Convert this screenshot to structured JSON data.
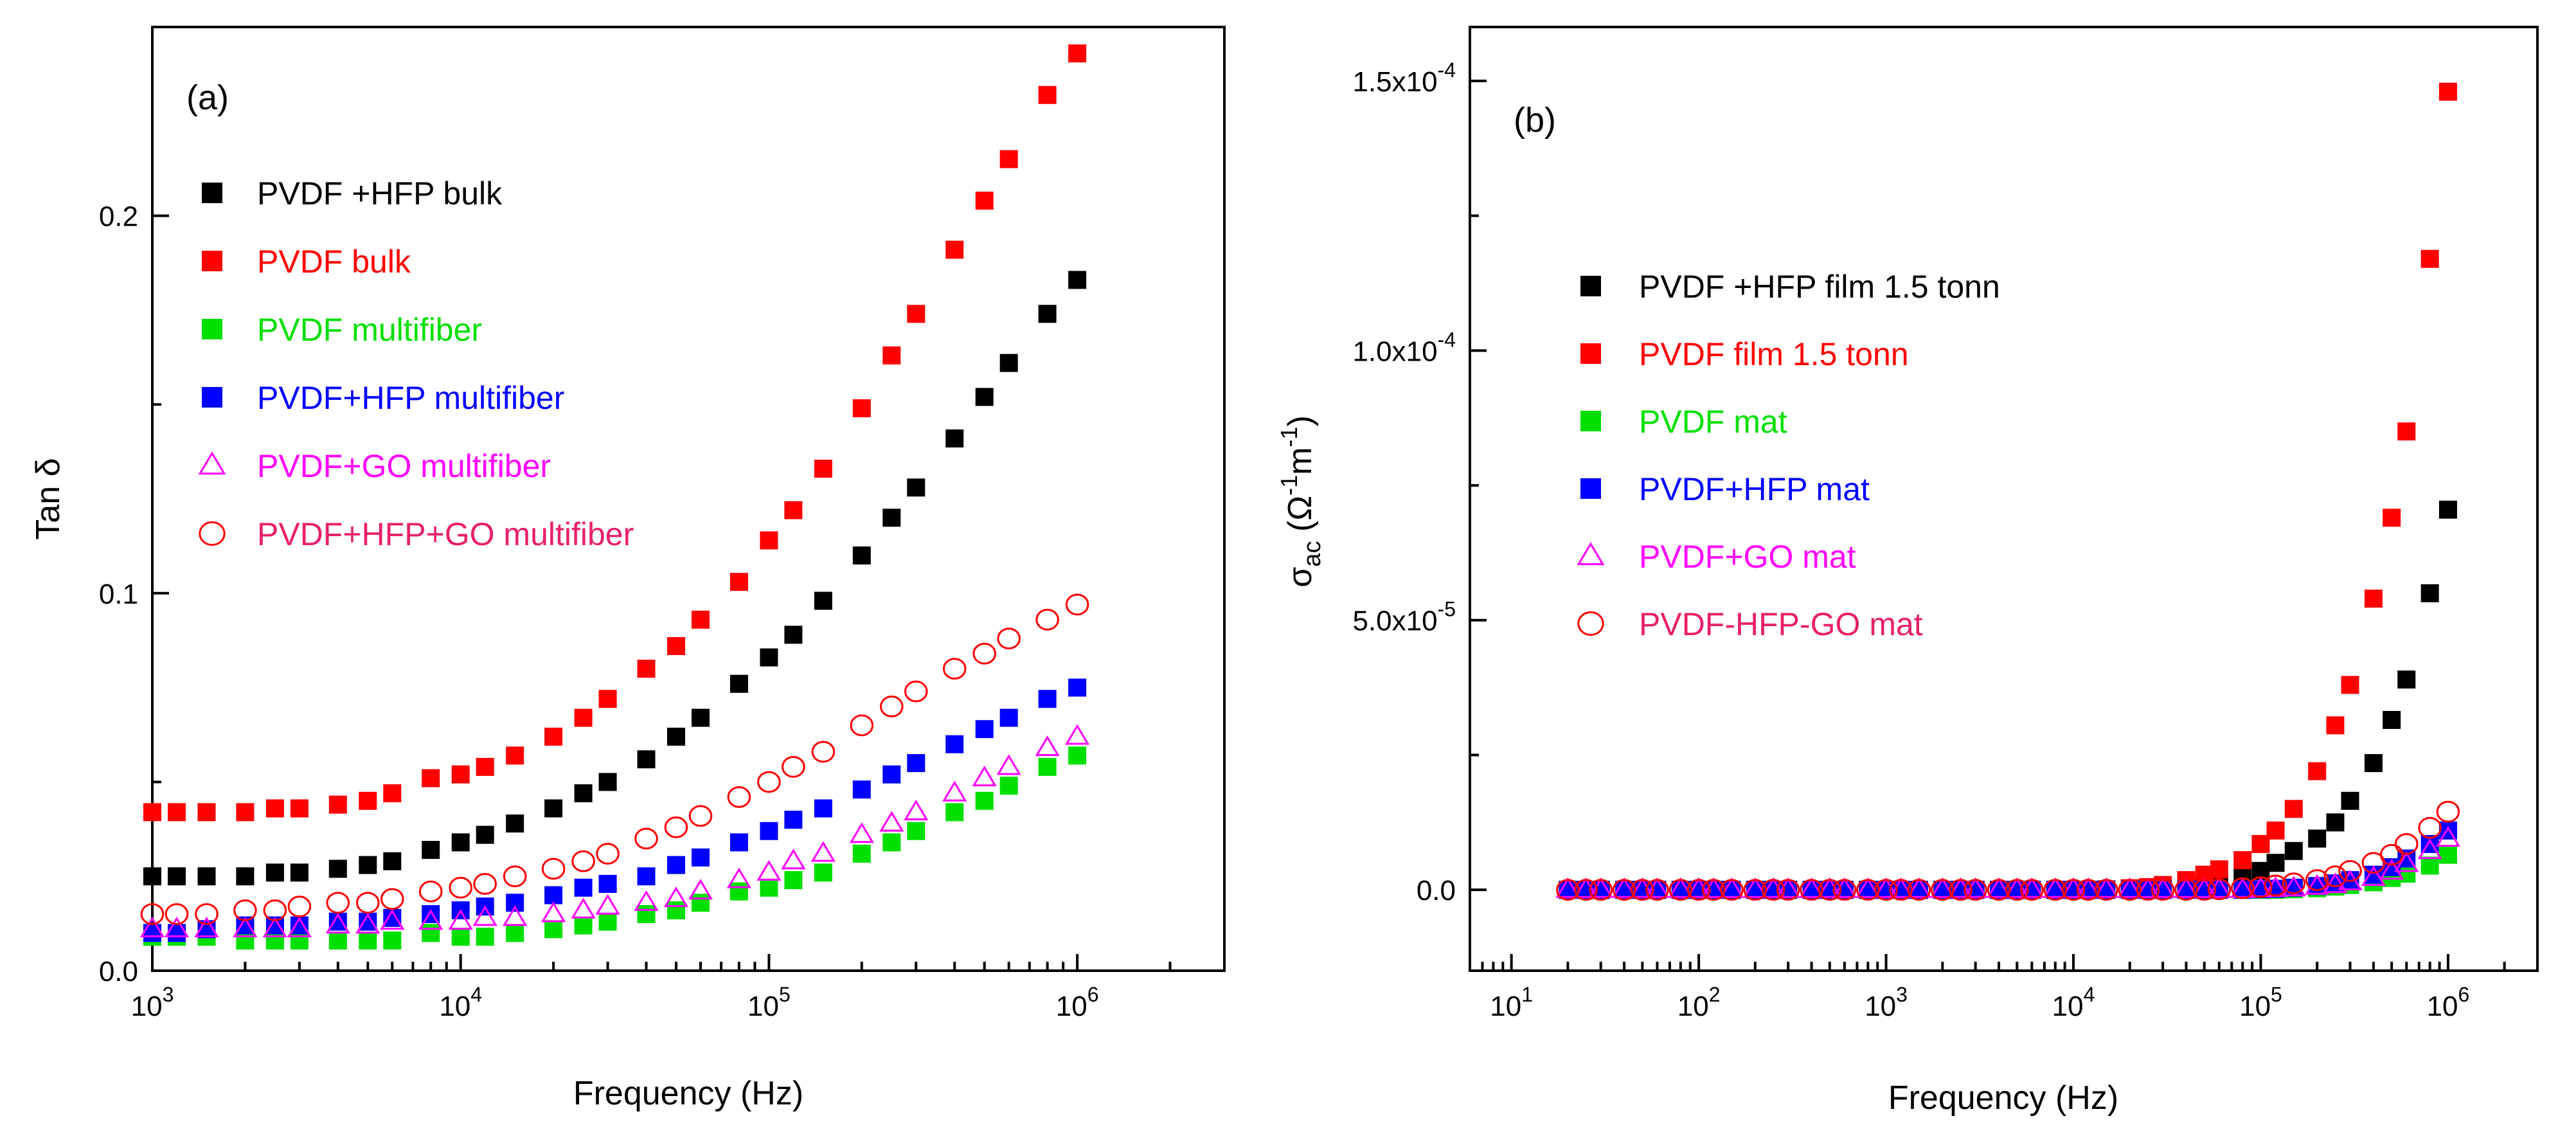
{
  "chart_data": [
    {
      "panel": "(a)",
      "type": "scatter",
      "xlabel": "Frequency (Hz)",
      "ylabel": "Tan δ",
      "xscale": "log",
      "xlim": [
        1000,
        3000000
      ],
      "ylim": [
        0,
        0.25
      ],
      "xticks": [
        1000,
        10000,
        100000,
        1000000
      ],
      "xtick_labels": [
        {
          "base": "10",
          "exp": "3"
        },
        {
          "base": "10",
          "exp": "4"
        },
        {
          "base": "10",
          "exp": "5"
        },
        {
          "base": "10",
          "exp": "6"
        }
      ],
      "yticks": [
        0,
        0.1,
        0.2
      ],
      "ytick_labels": [
        "0.0",
        "0.1",
        "0.2"
      ],
      "legend_position": "top-left",
      "x": [
        1000,
        1200,
        1500,
        2000,
        2500,
        3000,
        4000,
        5000,
        6000,
        8000,
        10000,
        12000,
        15000,
        20000,
        25000,
        30000,
        40000,
        50000,
        60000,
        80000,
        100000,
        120000,
        150000,
        200000,
        250000,
        300000,
        400000,
        500000,
        600000,
        800000,
        1000000
      ],
      "series": [
        {
          "name": "PVDF +HFP bulk",
          "color": "#000000",
          "marker": "square",
          "values": [
            0.025,
            0.025,
            0.025,
            0.025,
            0.026,
            0.026,
            0.027,
            0.028,
            0.029,
            0.032,
            0.034,
            0.036,
            0.039,
            0.043,
            0.047,
            0.05,
            0.056,
            0.062,
            0.067,
            0.076,
            0.083,
            0.089,
            0.098,
            0.11,
            0.12,
            0.128,
            0.141,
            0.152,
            0.161,
            0.174,
            0.183
          ]
        },
        {
          "name": "PVDF bulk",
          "color": "#ff0000",
          "marker": "square",
          "values": [
            0.042,
            0.042,
            0.042,
            0.042,
            0.043,
            0.043,
            0.044,
            0.045,
            0.047,
            0.051,
            0.052,
            0.054,
            0.057,
            0.062,
            0.067,
            0.072,
            0.08,
            0.086,
            0.093,
            0.103,
            0.114,
            0.122,
            0.133,
            0.149,
            0.163,
            0.174,
            0.191,
            0.204,
            0.215,
            0.232,
            0.243
          ]
        },
        {
          "name": "PVDF multifiber",
          "color": "#00e000",
          "marker": "square",
          "values": [
            0.009,
            0.009,
            0.009,
            0.008,
            0.008,
            0.008,
            0.008,
            0.008,
            0.008,
            0.01,
            0.009,
            0.009,
            0.01,
            0.011,
            0.012,
            0.013,
            0.015,
            0.016,
            0.018,
            0.021,
            0.022,
            0.024,
            0.026,
            0.031,
            0.034,
            0.037,
            0.042,
            0.045,
            0.049,
            0.054,
            0.057
          ]
        },
        {
          "name": "PVDF+HFP multifiber",
          "color": "#0000ff",
          "marker": "square",
          "values": [
            0.01,
            0.01,
            0.011,
            0.012,
            0.012,
            0.012,
            0.013,
            0.013,
            0.014,
            0.015,
            0.016,
            0.017,
            0.018,
            0.02,
            0.022,
            0.023,
            0.025,
            0.028,
            0.03,
            0.034,
            0.037,
            0.04,
            0.043,
            0.048,
            0.052,
            0.055,
            0.06,
            0.064,
            0.067,
            0.072,
            0.075
          ]
        },
        {
          "name": "PVDF+GO multifiber",
          "color": "#ff00ff",
          "marker": "triangle-open",
          "values": [
            0.011,
            0.011,
            0.011,
            0.011,
            0.011,
            0.011,
            0.012,
            0.012,
            0.013,
            0.013,
            0.013,
            0.014,
            0.014,
            0.015,
            0.016,
            0.017,
            0.018,
            0.019,
            0.021,
            0.024,
            0.026,
            0.029,
            0.031,
            0.036,
            0.039,
            0.042,
            0.047,
            0.051,
            0.054,
            0.059,
            0.062
          ]
        },
        {
          "name": "PVDF+HFP+GO multifiber",
          "color": "#ff0000",
          "marker": "circle-open",
          "values": [
            0.015,
            0.015,
            0.015,
            0.016,
            0.016,
            0.017,
            0.018,
            0.018,
            0.019,
            0.021,
            0.022,
            0.023,
            0.025,
            0.027,
            0.029,
            0.031,
            0.035,
            0.038,
            0.041,
            0.046,
            0.05,
            0.054,
            0.058,
            0.065,
            0.07,
            0.074,
            0.08,
            0.084,
            0.088,
            0.093,
            0.097
          ]
        }
      ]
    },
    {
      "panel": "(b)",
      "type": "scatter",
      "xlabel": "Frequency (Hz)",
      "ylabel": {
        "sym": "σ",
        "sub": "ac",
        "unit_open": " (Ω",
        "sup1": "-1",
        "mid": "m",
        "sup2": "-1",
        "unit_close": ")"
      },
      "xscale": "log",
      "xlim": [
        6,
        3000000
      ],
      "ylim": [
        -1.5e-05,
        0.00016
      ],
      "xticks": [
        10,
        100,
        1000,
        10000,
        100000,
        1000000
      ],
      "xtick_labels": [
        {
          "base": "10",
          "exp": "1"
        },
        {
          "base": "10",
          "exp": "2"
        },
        {
          "base": "10",
          "exp": "3"
        },
        {
          "base": "10",
          "exp": "4"
        },
        {
          "base": "10",
          "exp": "5"
        },
        {
          "base": "10",
          "exp": "6"
        }
      ],
      "yticks": [
        0,
        5e-05,
        0.0001,
        0.00015
      ],
      "ytick_labels": [
        {
          "base": "0.0",
          "exp": ""
        },
        {
          "base": "5.0x10",
          "exp": "-5"
        },
        {
          "base": "1.0x10",
          "exp": "-4"
        },
        {
          "base": "1.5x10",
          "exp": "-4"
        }
      ],
      "legend_position": "center",
      "x": [
        20,
        25,
        30,
        40,
        50,
        60,
        80,
        100,
        120,
        150,
        200,
        250,
        300,
        400,
        500,
        600,
        800,
        1000,
        1200,
        1500,
        2000,
        2500,
        3000,
        4000,
        5000,
        6000,
        8000,
        10000,
        12000,
        15000,
        20000,
        25000,
        30000,
        40000,
        50000,
        60000,
        80000,
        100000,
        120000,
        150000,
        200000,
        250000,
        300000,
        400000,
        500000,
        600000,
        800000,
        1000000
      ],
      "series": [
        {
          "name": "PVDF +HFP film 1.5 tonn",
          "color": "#000000",
          "marker": "square",
          "values": [
            0,
            0,
            0,
            0,
            0,
            0,
            0,
            0,
            0,
            0,
            0,
            0,
            0,
            0,
            0,
            0,
            0,
            0,
            0,
            0,
            0,
            0,
            0,
            0,
            0,
            0,
            0,
            0,
            0,
            0,
            1e-07,
            2e-07,
            3e-07,
            5e-07,
            8e-07,
            1.1e-06,
            2.5e-06,
            3.5e-06,
            5e-06,
            7.2e-06,
            9.5e-06,
            1.25e-05,
            1.65e-05,
            2.35e-05,
            3.15e-05,
            3.9e-05,
            5.5e-05,
            7.05e-05
          ]
        },
        {
          "name": "PVDF film 1.5 tonn",
          "color": "#ff0000",
          "marker": "square",
          "values": [
            0,
            0,
            0,
            0,
            0,
            0,
            0,
            0,
            0,
            0,
            0,
            0,
            0,
            0,
            0,
            0,
            0,
            0,
            0,
            0,
            0,
            0,
            0,
            0,
            0,
            0,
            0,
            0,
            0,
            1e-07,
            3e-07,
            5e-07,
            9e-07,
            1.8e-06,
            2.8e-06,
            3.8e-06,
            5.5e-06,
            8.5e-06,
            1.1e-05,
            1.5e-05,
            2.2e-05,
            3.05e-05,
            3.8e-05,
            5.4e-05,
            6.9e-05,
            8.5e-05,
            0.000117,
            0.000148
          ]
        },
        {
          "name": "PVDF mat",
          "color": "#00e000",
          "marker": "square",
          "values": [
            0,
            0,
            0,
            0,
            0,
            0,
            0,
            0,
            0,
            0,
            0,
            0,
            0,
            0,
            0,
            0,
            0,
            0,
            0,
            0,
            0,
            0,
            0,
            0,
            0,
            0,
            0,
            0,
            0,
            0,
            0,
            0,
            0,
            0,
            0,
            0,
            0,
            0,
            0,
            1e-07,
            3e-07,
            6e-07,
            9e-07,
            1.4e-06,
            2.2e-06,
            3e-06,
            4.5e-06,
            6.5e-06
          ]
        },
        {
          "name": "PVDF+HFP mat",
          "color": "#0000ff",
          "marker": "square",
          "values": [
            0,
            0,
            0,
            0,
            0,
            0,
            0,
            0,
            0,
            0,
            0,
            0,
            0,
            0,
            0,
            0,
            0,
            0,
            0,
            0,
            0,
            0,
            0,
            0,
            0,
            0,
            0,
            0,
            0,
            0,
            0,
            0,
            0,
            0,
            0,
            0,
            0,
            1e-07,
            2e-07,
            4e-07,
            7e-07,
            1.2e-06,
            1.8e-06,
            2.8e-06,
            4.2e-06,
            5.8e-06,
            8.5e-06,
            1.1e-05
          ]
        },
        {
          "name": "PVDF+GO mat",
          "color": "#ff00ff",
          "marker": "triangle-open",
          "values": [
            0,
            0,
            0,
            0,
            0,
            0,
            0,
            0,
            0,
            0,
            0,
            0,
            0,
            0,
            0,
            0,
            0,
            0,
            0,
            0,
            0,
            0,
            0,
            0,
            0,
            0,
            0,
            0,
            0,
            0,
            0,
            0,
            0,
            0,
            0,
            0,
            0,
            1e-07,
            2e-07,
            3e-07,
            6e-07,
            9e-07,
            1.4e-06,
            2.2e-06,
            3.4e-06,
            4.8e-06,
            7.2e-06,
            9.5e-06
          ]
        },
        {
          "name": "PVDF-HFP-GO mat",
          "color": "#ff0000",
          "marker": "circle-open",
          "values": [
            0,
            0,
            0,
            0,
            0,
            0,
            0,
            0,
            0,
            0,
            0,
            0,
            0,
            0,
            0,
            0,
            0,
            0,
            0,
            0,
            0,
            0,
            0,
            0,
            0,
            0,
            0,
            0,
            0,
            0,
            0,
            0,
            0,
            0,
            0,
            1e-07,
            3e-07,
            5e-07,
            8e-07,
            1.2e-06,
            1.8e-06,
            2.5e-06,
            3.5e-06,
            5e-06,
            6.5e-06,
            8.5e-06,
            1.15e-05,
            1.45e-05
          ]
        }
      ]
    }
  ]
}
